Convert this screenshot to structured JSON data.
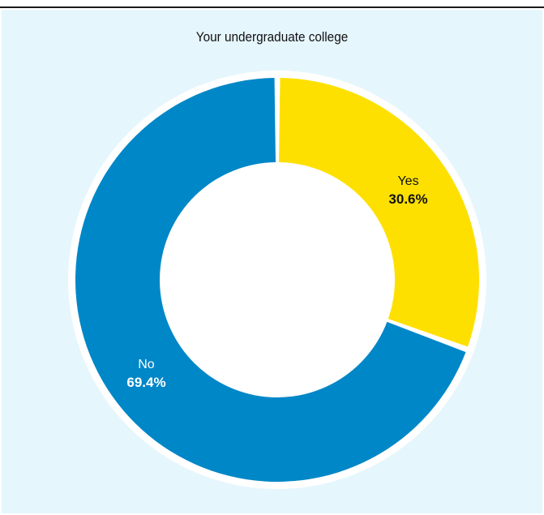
{
  "chart_data": {
    "type": "pie",
    "title": "Your undergraduate college",
    "categories": [
      "Yes",
      "No"
    ],
    "values": [
      30.6,
      69.4
    ],
    "value_labels": [
      "30.6%",
      "69.4%"
    ],
    "colors": [
      "#fde000",
      "#0087c7"
    ],
    "label_colors": [
      "#111111",
      "#ffffff"
    ],
    "legend": "none",
    "style": "donut"
  },
  "colors": {
    "background": "#e6f6fd",
    "separator": "#ffffff",
    "rule": "#1a1a1a"
  }
}
